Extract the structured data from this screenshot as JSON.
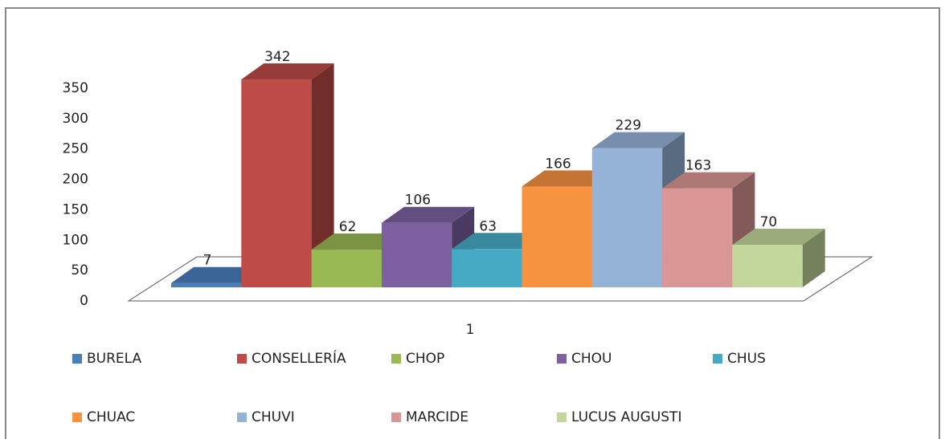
{
  "chart_data": {
    "type": "bar3d",
    "categories": [
      "1"
    ],
    "series": [
      {
        "name": "BURELA",
        "color": "#4a7ebb",
        "values": [
          7
        ]
      },
      {
        "name": "CONSELLERÍA",
        "color": "#be4b48",
        "values": [
          342
        ]
      },
      {
        "name": "CHOP",
        "color": "#98b954",
        "values": [
          62
        ]
      },
      {
        "name": "CHOU",
        "color": "#7d60a0",
        "values": [
          106
        ]
      },
      {
        "name": "CHUS",
        "color": "#46aac5",
        "values": [
          63
        ]
      },
      {
        "name": "CHUAC",
        "color": "#f69240",
        "values": [
          166
        ]
      },
      {
        "name": "CHUVI",
        "color": "#95b3d7",
        "values": [
          229
        ]
      },
      {
        "name": "MARCIDE",
        "color": "#d99694",
        "values": [
          163
        ]
      },
      {
        "name": "LUCUS AUGUSTI",
        "color": "#c3d69b",
        "values": [
          70
        ]
      }
    ],
    "ylim": [
      0,
      350
    ],
    "yticks": [
      0,
      50,
      100,
      150,
      200,
      250,
      300,
      350
    ]
  }
}
